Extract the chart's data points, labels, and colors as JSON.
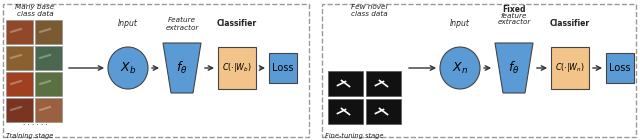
{
  "fig_width": 6.4,
  "fig_height": 1.4,
  "dpi": 100,
  "blue_color": "#5b9bd5",
  "orange_color": "#f2c48a",
  "text_color": "#222222",
  "left_panel": {
    "title": "Many base\nclass data",
    "stage_label": "Training stage",
    "input_label": "Input",
    "feat_label": "Feature\nextractor",
    "classifier_label": "Classifier",
    "node_label": "$X_b$",
    "feat_node_label": "$f_\\theta$",
    "cls_node_label": "$C(\\cdot|W_b)$",
    "loss_label": "Loss"
  },
  "right_panel": {
    "title": "Few novel\nclass data",
    "fixed_bold": "Fixed",
    "fixed_rest": "feature\nextractor",
    "classifier_label": "Classifier",
    "stage_label": "Fine-tuning stage",
    "input_label": "Input",
    "node_label": "$X_n$",
    "feat_node_label": "$f_\\theta$",
    "cls_node_label": "$C(\\cdot|W_n)$",
    "loss_label": "Loss"
  }
}
